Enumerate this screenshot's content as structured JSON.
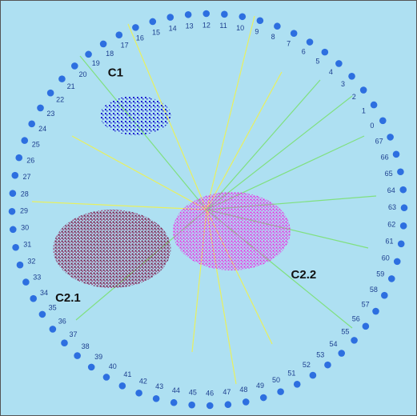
{
  "chart_data": {
    "type": "radviz",
    "anchors": [
      "0",
      "1",
      "2",
      "3",
      "4",
      "5",
      "6",
      "7",
      "8",
      "9",
      "10",
      "11",
      "12",
      "13",
      "14",
      "15",
      "16",
      "17",
      "18",
      "19",
      "20",
      "21",
      "22",
      "23",
      "24",
      "25",
      "26",
      "27",
      "28",
      "29",
      "30",
      "31",
      "32",
      "33",
      "34",
      "35",
      "36",
      "37",
      "38",
      "39",
      "40",
      "41",
      "42",
      "43",
      "44",
      "45",
      "46",
      "47",
      "48",
      "49",
      "50",
      "51",
      "52",
      "53",
      "54",
      "55",
      "56",
      "57",
      "58",
      "59",
      "60",
      "61",
      "62",
      "63",
      "64",
      "65",
      "66",
      "67"
    ],
    "anchor_color": "#2d6fe0",
    "clusters": [
      {
        "name": "C1",
        "color": "#1a1ad0",
        "x": -0.37,
        "y": 0.48,
        "rx": 0.18,
        "ry": 0.1
      },
      {
        "name": "C2.1",
        "color": "#7a1a4a",
        "x": -0.49,
        "y": -0.2,
        "rx": 0.3,
        "ry": 0.2
      },
      {
        "name": "C2.2",
        "color": "#f020e0",
        "x": 0.12,
        "y": -0.11,
        "rx": 0.3,
        "ry": 0.2
      }
    ]
  }
}
